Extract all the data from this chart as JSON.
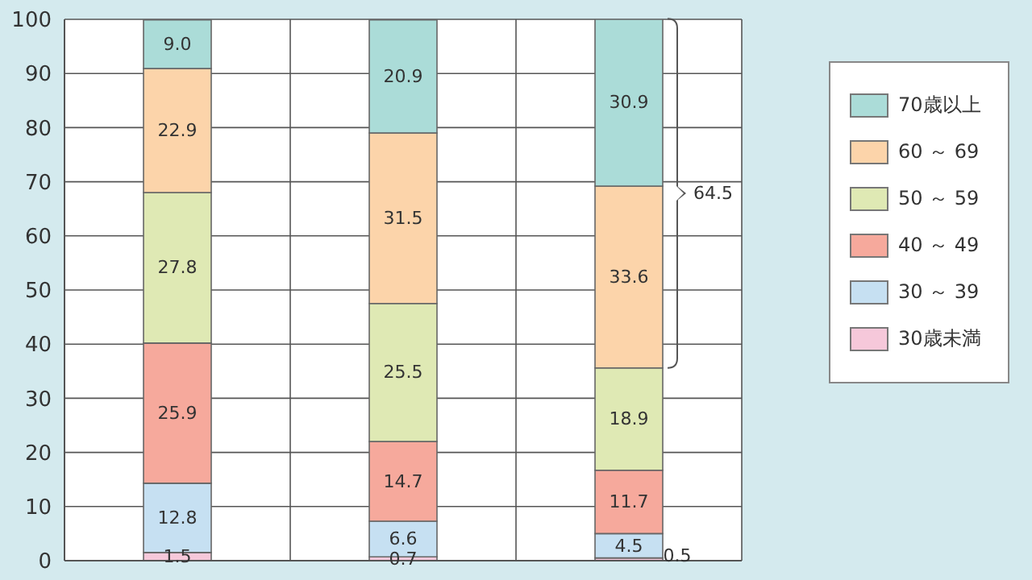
{
  "chart_data": {
    "type": "bar",
    "stacked": true,
    "categories": [
      null,
      null,
      null
    ],
    "series": [
      {
        "name": "30歳未満",
        "color": "#f6c8da",
        "values": [
          1.5,
          0.7,
          0.5
        ],
        "value_labels": [
          "1.5",
          "0.7",
          "0.5"
        ]
      },
      {
        "name": "30 ～ 39",
        "color": "#c6e0f2",
        "values": [
          12.8,
          6.6,
          4.5
        ],
        "value_labels": [
          "12.8",
          "6.6",
          "4.5"
        ]
      },
      {
        "name": "40 ～ 49",
        "color": "#f6a99c",
        "values": [
          25.9,
          14.7,
          11.7
        ],
        "value_labels": [
          "25.9",
          "14.7",
          "11.7"
        ]
      },
      {
        "name": "50 ～ 59",
        "color": "#dfe9b4",
        "values": [
          27.8,
          25.5,
          18.9
        ],
        "value_labels": [
          "27.8",
          "25.5",
          "18.9"
        ]
      },
      {
        "name": "60 ～ 69",
        "color": "#fcd4aa",
        "values": [
          22.9,
          31.5,
          33.6
        ],
        "value_labels": [
          "22.9",
          "31.5",
          "33.6"
        ]
      },
      {
        "name": "70歳以上",
        "color": "#abdcd8",
        "values": [
          9.0,
          20.9,
          30.9
        ],
        "value_labels": [
          "9.0",
          "20.9",
          "30.9"
        ]
      }
    ],
    "ylim": [
      0,
      100
    ],
    "yticks": [
      0,
      10,
      20,
      30,
      40,
      50,
      60,
      70,
      80,
      90,
      100
    ],
    "grid": true,
    "legend": "right",
    "annotations": [
      "64.5"
    ]
  }
}
